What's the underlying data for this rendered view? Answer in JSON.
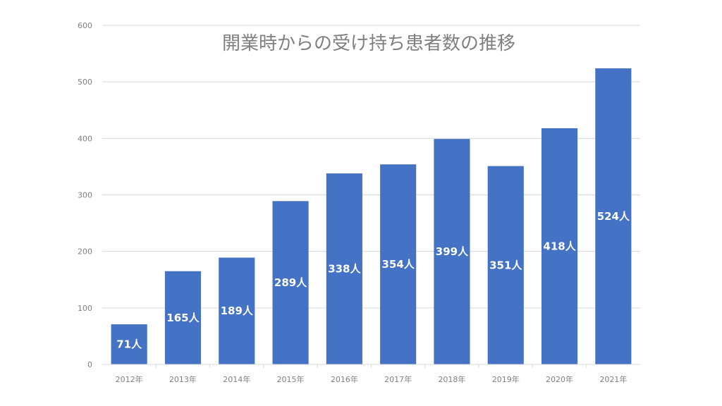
{
  "chart_data": {
    "type": "bar",
    "title": "開業時からの受け持ち患者数の推移",
    "categories": [
      "2012年",
      "2013年",
      "2014年",
      "2015年",
      "2016年",
      "2017年",
      "2018年",
      "2019年",
      "2020年",
      "2021年"
    ],
    "values": [
      71,
      165,
      189,
      289,
      338,
      354,
      399,
      351,
      418,
      524
    ],
    "data_labels": [
      "71人",
      "165人",
      "189人",
      "289人",
      "338人",
      "354人",
      "399人",
      "351人",
      "418人",
      "524人"
    ],
    "yticks": [
      0,
      100,
      200,
      300,
      400,
      500,
      600
    ],
    "ylim": [
      0,
      600
    ],
    "grid": true,
    "bar_color": "#4472C4"
  }
}
